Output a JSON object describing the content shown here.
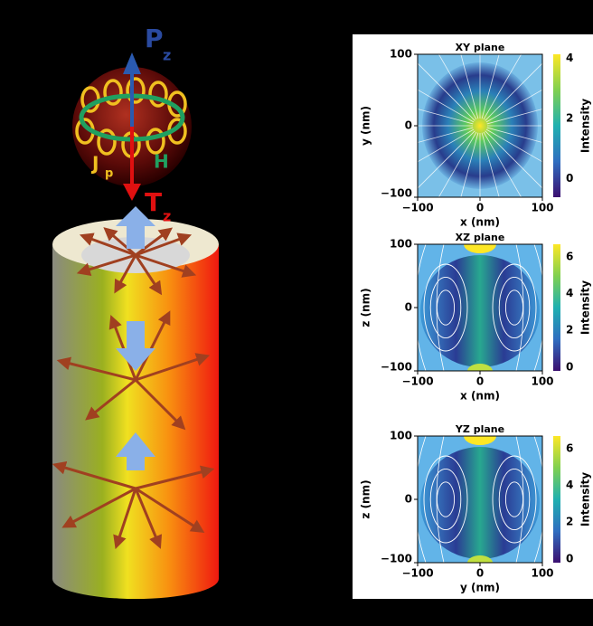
{
  "illustration": {
    "p_label": "P",
    "p_sub": "z",
    "t_label": "T",
    "t_sub": "z",
    "j_label": "J",
    "j_sub": "p",
    "h_label": "H"
  },
  "panels": [
    {
      "title": "XY plane",
      "xlabel": "x (nm)",
      "ylabel": "y (nm)",
      "xticks": [
        "−100",
        "0",
        "100"
      ],
      "yticks": [
        "100",
        "0",
        "−100"
      ],
      "colorbar_label": "Intensity",
      "colorbar_ticks": [
        "4",
        "2",
        "0"
      ]
    },
    {
      "title": "XZ plane",
      "xlabel": "x (nm)",
      "ylabel": "z (nm)",
      "xticks": [
        "−100",
        "0",
        "100"
      ],
      "yticks": [
        "100",
        "0",
        "−100"
      ],
      "colorbar_label": "Intensity",
      "colorbar_ticks": [
        "6",
        "4",
        "2",
        "0"
      ]
    },
    {
      "title": "YZ plane",
      "xlabel": "y (nm)",
      "ylabel": "z (nm)",
      "xticks": [
        "−100",
        "0",
        "100"
      ],
      "yticks": [
        "100",
        "0",
        "−100"
      ],
      "colorbar_label": "Intensity",
      "colorbar_ticks": [
        "6",
        "4",
        "2",
        "0"
      ]
    }
  ]
}
